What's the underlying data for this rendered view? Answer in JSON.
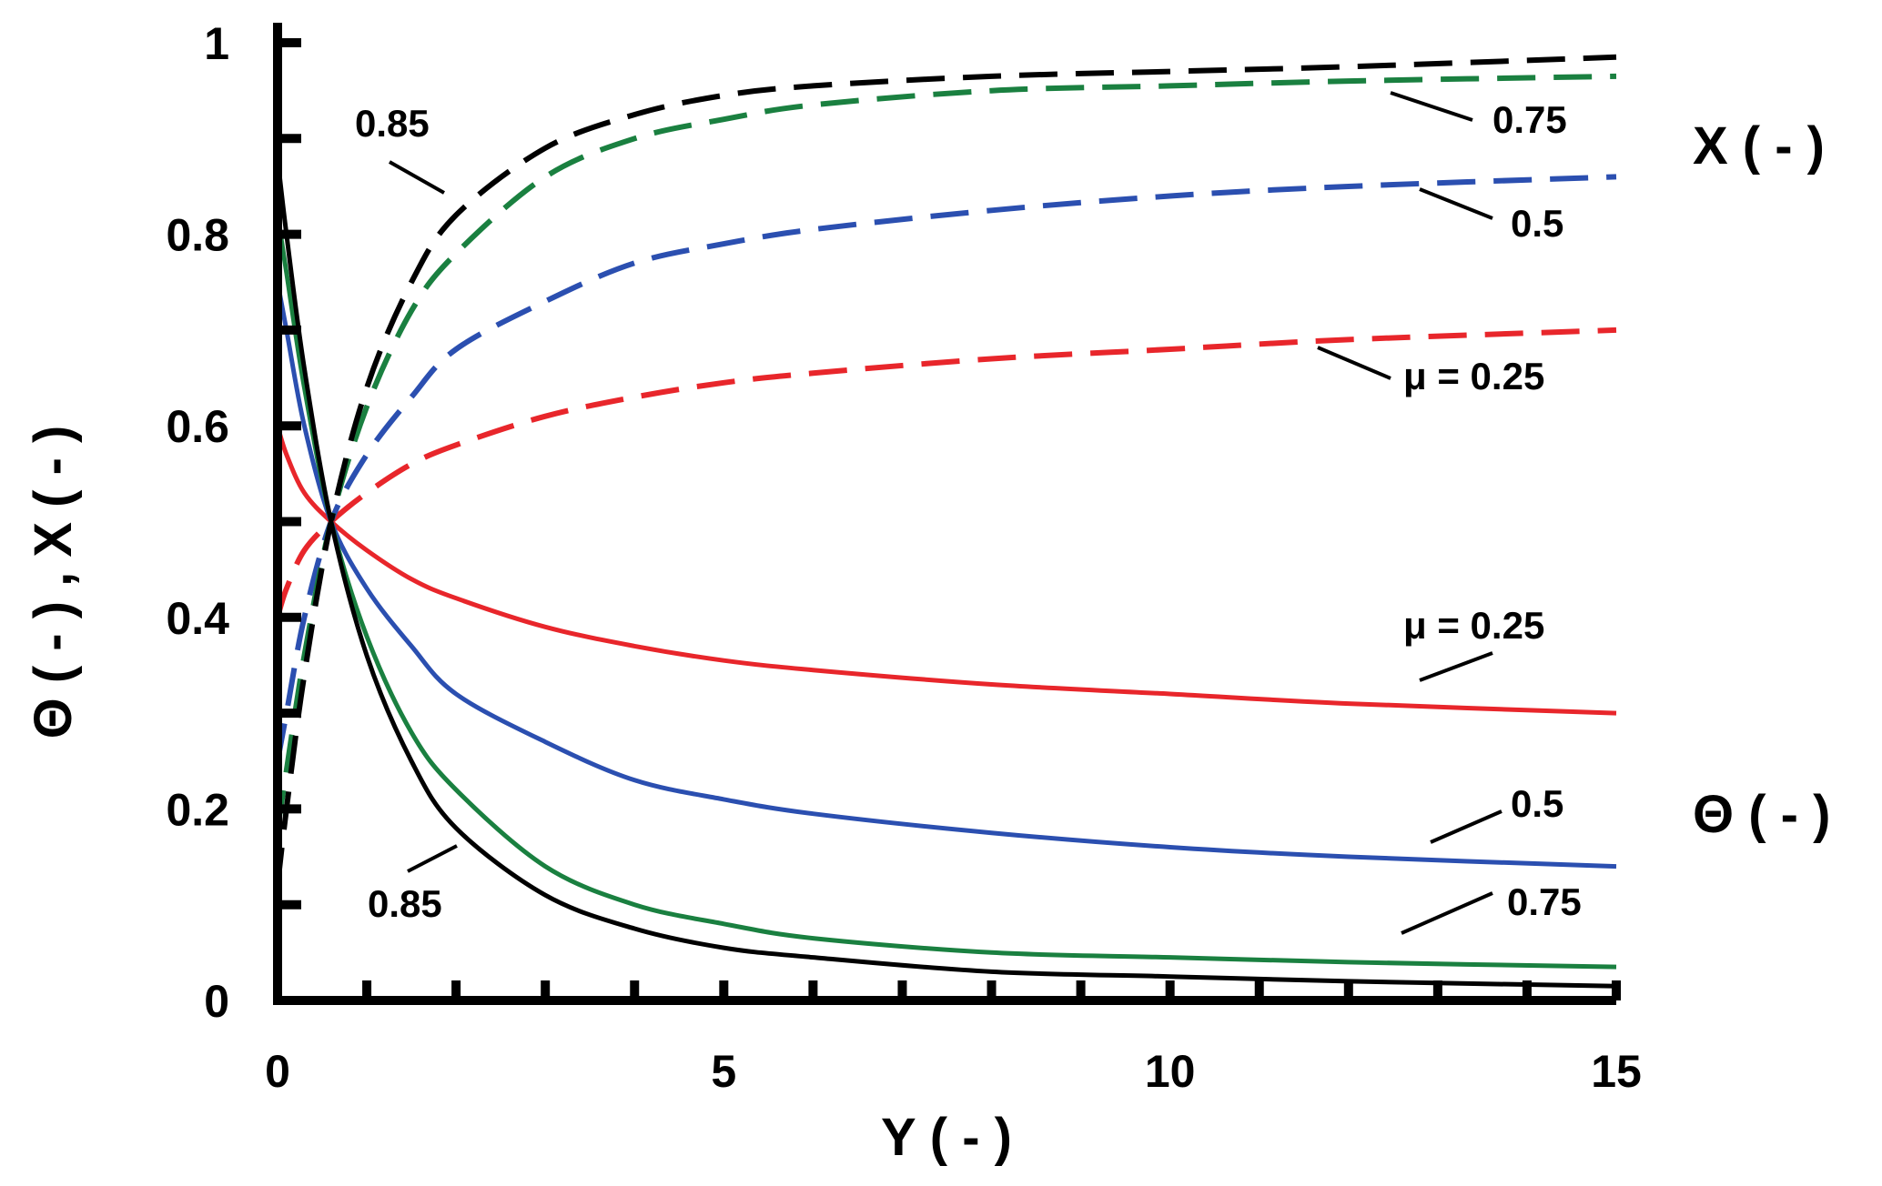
{
  "chart_data": {
    "type": "line",
    "xlabel": "Y ( - )",
    "ylabel": "Θ ( - ) ,  X ( - )",
    "xlim": [
      0,
      15
    ],
    "ylim": [
      0,
      1
    ],
    "x_ticks": [
      "0",
      "5",
      "10",
      "15"
    ],
    "y_ticks": [
      "0",
      "0.2",
      "0.4",
      "0.6",
      "0.8",
      "1"
    ],
    "grid": false,
    "side_labels": {
      "X": "X ( - )",
      "Theta": "Θ ( - )"
    },
    "annotations": {
      "X_085": "0.85",
      "X_075": "0.75",
      "X_05": "0.5",
      "X_025": "μ = 0.25",
      "T_025": "μ = 0.25",
      "T_05": "0.5",
      "T_075": "0.75",
      "T_085": "0.85"
    },
    "colors": {
      "0.25": "#e8262b",
      "0.5": "#2b4fb0",
      "0.75": "#1a8040",
      "0.85": "#000000"
    },
    "series": [
      {
        "mu": 0.25,
        "variable": "X",
        "style": "dashed",
        "color": "#e8262b",
        "x": [
          0,
          0.1,
          0.3,
          0.6,
          1,
          1.5,
          2,
          3,
          4,
          5,
          6,
          8,
          10,
          12,
          15
        ],
        "y": [
          0.4,
          0.43,
          0.47,
          0.5,
          0.53,
          0.56,
          0.58,
          0.61,
          0.63,
          0.645,
          0.655,
          0.67,
          0.68,
          0.69,
          0.7
        ]
      },
      {
        "mu": 0.5,
        "variable": "X",
        "style": "dashed",
        "color": "#2b4fb0",
        "x": [
          0,
          0.1,
          0.3,
          0.6,
          1,
          1.5,
          2,
          3,
          4,
          5,
          6,
          8,
          10,
          12,
          15
        ],
        "y": [
          0.25,
          0.3,
          0.4,
          0.5,
          0.57,
          0.63,
          0.68,
          0.73,
          0.77,
          0.79,
          0.805,
          0.825,
          0.84,
          0.85,
          0.86
        ]
      },
      {
        "mu": 0.75,
        "variable": "X",
        "style": "dashed",
        "color": "#1a8040",
        "x": [
          0,
          0.1,
          0.3,
          0.6,
          1,
          1.5,
          2,
          3,
          4,
          5,
          6,
          8,
          10,
          12,
          15
        ],
        "y": [
          0.18,
          0.24,
          0.36,
          0.5,
          0.62,
          0.72,
          0.78,
          0.86,
          0.9,
          0.92,
          0.935,
          0.95,
          0.955,
          0.96,
          0.965
        ]
      },
      {
        "mu": 0.85,
        "variable": "X",
        "style": "dashed",
        "color": "#000000",
        "x": [
          0,
          0.1,
          0.3,
          0.6,
          1,
          1.5,
          2,
          3,
          4,
          5,
          6,
          8,
          10,
          12,
          15
        ],
        "y": [
          0.12,
          0.2,
          0.34,
          0.5,
          0.64,
          0.75,
          0.82,
          0.89,
          0.925,
          0.945,
          0.955,
          0.965,
          0.97,
          0.975,
          0.985
        ]
      },
      {
        "mu": 0.25,
        "variable": "Θ",
        "style": "solid",
        "color": "#e8262b",
        "x": [
          0,
          0.1,
          0.3,
          0.6,
          1,
          1.5,
          2,
          3,
          4,
          5,
          6,
          8,
          10,
          12,
          15
        ],
        "y": [
          0.6,
          0.57,
          0.53,
          0.5,
          0.47,
          0.44,
          0.42,
          0.39,
          0.37,
          0.355,
          0.345,
          0.33,
          0.32,
          0.31,
          0.3
        ]
      },
      {
        "mu": 0.5,
        "variable": "Θ",
        "style": "solid",
        "color": "#2b4fb0",
        "x": [
          0,
          0.1,
          0.3,
          0.6,
          1,
          1.5,
          2,
          3,
          4,
          5,
          6,
          8,
          10,
          12,
          15
        ],
        "y": [
          0.75,
          0.7,
          0.6,
          0.5,
          0.43,
          0.37,
          0.32,
          0.27,
          0.23,
          0.21,
          0.195,
          0.175,
          0.16,
          0.15,
          0.14
        ]
      },
      {
        "mu": 0.75,
        "variable": "Θ",
        "style": "solid",
        "color": "#1a8040",
        "x": [
          0,
          0.1,
          0.3,
          0.6,
          1,
          1.5,
          2,
          3,
          4,
          5,
          6,
          8,
          10,
          12,
          15
        ],
        "y": [
          0.82,
          0.76,
          0.64,
          0.5,
          0.38,
          0.28,
          0.22,
          0.14,
          0.1,
          0.08,
          0.065,
          0.05,
          0.045,
          0.04,
          0.035
        ]
      },
      {
        "mu": 0.85,
        "variable": "Θ",
        "style": "solid",
        "color": "#000000",
        "x": [
          0,
          0.1,
          0.3,
          0.6,
          1,
          1.5,
          2,
          3,
          4,
          5,
          6,
          8,
          10,
          12,
          15
        ],
        "y": [
          0.88,
          0.8,
          0.66,
          0.5,
          0.36,
          0.25,
          0.18,
          0.11,
          0.075,
          0.055,
          0.045,
          0.03,
          0.025,
          0.02,
          0.015
        ]
      }
    ]
  }
}
